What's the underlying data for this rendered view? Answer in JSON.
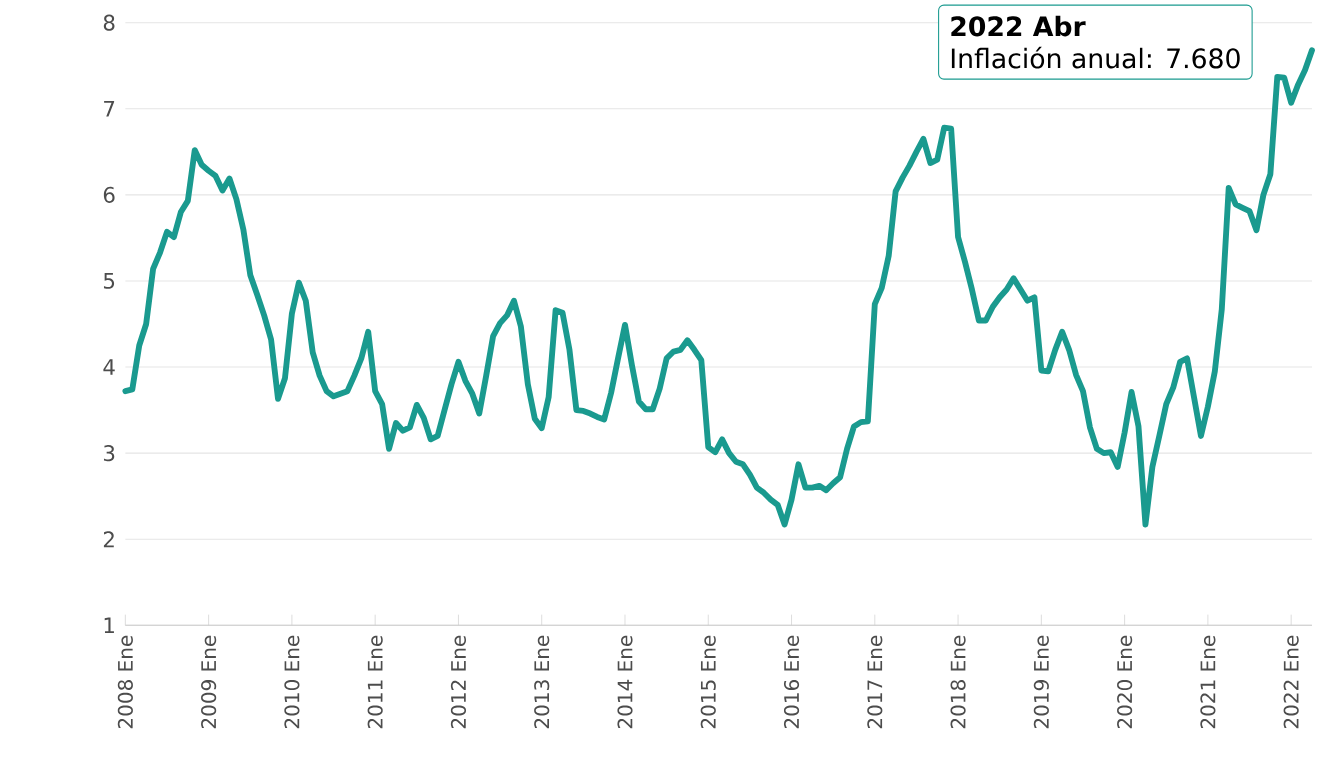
{
  "chart_data": {
    "type": "line",
    "x": [
      "2008-01",
      "2008-02",
      "2008-03",
      "2008-04",
      "2008-05",
      "2008-06",
      "2008-07",
      "2008-08",
      "2008-09",
      "2008-10",
      "2008-11",
      "2008-12",
      "2009-01",
      "2009-02",
      "2009-03",
      "2009-04",
      "2009-05",
      "2009-06",
      "2009-07",
      "2009-08",
      "2009-09",
      "2009-10",
      "2009-11",
      "2009-12",
      "2010-01",
      "2010-02",
      "2010-03",
      "2010-04",
      "2010-05",
      "2010-06",
      "2010-07",
      "2010-08",
      "2010-09",
      "2010-10",
      "2010-11",
      "2010-12",
      "2011-01",
      "2011-02",
      "2011-03",
      "2011-04",
      "2011-05",
      "2011-06",
      "2011-07",
      "2011-08",
      "2011-09",
      "2011-10",
      "2011-11",
      "2011-12",
      "2012-01",
      "2012-02",
      "2012-03",
      "2012-04",
      "2012-05",
      "2012-06",
      "2012-07",
      "2012-08",
      "2012-09",
      "2012-10",
      "2012-11",
      "2012-12",
      "2013-01",
      "2013-02",
      "2013-03",
      "2013-04",
      "2013-05",
      "2013-06",
      "2013-07",
      "2013-08",
      "2013-09",
      "2013-10",
      "2013-11",
      "2013-12",
      "2014-01",
      "2014-02",
      "2014-03",
      "2014-04",
      "2014-05",
      "2014-06",
      "2014-07",
      "2014-08",
      "2014-09",
      "2014-10",
      "2014-11",
      "2014-12",
      "2015-01",
      "2015-02",
      "2015-03",
      "2015-04",
      "2015-05",
      "2015-06",
      "2015-07",
      "2015-08",
      "2015-09",
      "2015-10",
      "2015-11",
      "2015-12",
      "2016-01",
      "2016-02",
      "2016-03",
      "2016-04",
      "2016-05",
      "2016-06",
      "2016-07",
      "2016-08",
      "2016-09",
      "2016-10",
      "2016-11",
      "2016-12",
      "2017-01",
      "2017-02",
      "2017-03",
      "2017-04",
      "2017-05",
      "2017-06",
      "2017-07",
      "2017-08",
      "2017-09",
      "2017-10",
      "2017-11",
      "2017-12",
      "2018-01",
      "2018-02",
      "2018-03",
      "2018-04",
      "2018-05",
      "2018-06",
      "2018-07",
      "2018-08",
      "2018-09",
      "2018-10",
      "2018-11",
      "2018-12",
      "2019-01",
      "2019-02",
      "2019-03",
      "2019-04",
      "2019-05",
      "2019-06",
      "2019-07",
      "2019-08",
      "2019-09",
      "2019-10",
      "2019-11",
      "2019-12",
      "2020-01",
      "2020-02",
      "2020-03",
      "2020-04",
      "2020-05",
      "2020-06",
      "2020-07",
      "2020-08",
      "2020-09",
      "2020-10",
      "2020-11",
      "2020-12",
      "2021-01",
      "2021-02",
      "2021-03",
      "2021-04",
      "2021-05",
      "2021-06",
      "2021-07",
      "2021-08",
      "2021-09",
      "2021-10",
      "2021-11",
      "2021-12",
      "2022-01",
      "2022-02",
      "2022-03",
      "2022-04"
    ],
    "series": [
      {
        "color": "#1a9a8f",
        "values": [
          3.72,
          3.74,
          4.25,
          4.5,
          5.14,
          5.33,
          5.57,
          5.51,
          5.8,
          5.93,
          6.52,
          6.35,
          6.28,
          6.22,
          6.05,
          6.19,
          5.95,
          5.6,
          5.07,
          4.84,
          4.6,
          4.32,
          3.63,
          3.87,
          4.62,
          4.98,
          4.77,
          4.17,
          3.9,
          3.72,
          3.66,
          3.69,
          3.72,
          3.9,
          4.1,
          4.41,
          3.72,
          3.57,
          3.05,
          3.35,
          3.26,
          3.3,
          3.56,
          3.41,
          3.16,
          3.2,
          3.5,
          3.8,
          4.06,
          3.84,
          3.69,
          3.46,
          3.9,
          4.36,
          4.51,
          4.6,
          4.77,
          4.47,
          3.8,
          3.4,
          3.29,
          3.65,
          4.66,
          4.63,
          4.2,
          3.5,
          3.49,
          3.46,
          3.42,
          3.39,
          3.7,
          4.1,
          4.49,
          4.02,
          3.6,
          3.51,
          3.51,
          3.75,
          4.1,
          4.18,
          4.2,
          4.31,
          4.2,
          4.08,
          3.07,
          3.01,
          3.16,
          3.0,
          2.9,
          2.87,
          2.75,
          2.6,
          2.54,
          2.46,
          2.4,
          2.17,
          2.46,
          2.87,
          2.6,
          2.6,
          2.62,
          2.57,
          2.65,
          2.72,
          3.05,
          3.31,
          3.36,
          3.37,
          4.73,
          4.92,
          5.29,
          6.04,
          6.2,
          6.34,
          6.5,
          6.65,
          6.37,
          6.41,
          6.78,
          6.77,
          5.51,
          5.22,
          4.9,
          4.54,
          4.54,
          4.7,
          4.81,
          4.9,
          5.03,
          4.9,
          4.77,
          4.81,
          3.96,
          3.95,
          4.2,
          4.41,
          4.2,
          3.91,
          3.72,
          3.3,
          3.05,
          3.0,
          3.01,
          2.84,
          3.24,
          3.71,
          3.31,
          2.17,
          2.84,
          3.2,
          3.57,
          3.76,
          4.06,
          4.1,
          3.65,
          3.2,
          3.54,
          3.95,
          4.67,
          6.08,
          5.89,
          5.85,
          5.81,
          5.59,
          6.0,
          6.24,
          7.37,
          7.36,
          7.07,
          7.28,
          7.45,
          7.68
        ]
      }
    ],
    "xlim": [
      "2008-01",
      "2022-04"
    ],
    "xticks": [
      {
        "value": "2008-01",
        "label": "2008 Ene"
      },
      {
        "value": "2009-01",
        "label": "2009 Ene"
      },
      {
        "value": "2010-01",
        "label": "2010 Ene"
      },
      {
        "value": "2011-01",
        "label": "2011 Ene"
      },
      {
        "value": "2012-01",
        "label": "2012 Ene"
      },
      {
        "value": "2013-01",
        "label": "2013 Ene"
      },
      {
        "value": "2014-01",
        "label": "2014 Ene"
      },
      {
        "value": "2015-01",
        "label": "2015 Ene"
      },
      {
        "value": "2016-01",
        "label": "2016 Ene"
      },
      {
        "value": "2017-01",
        "label": "2017 Ene"
      },
      {
        "value": "2018-01",
        "label": "2018 Ene"
      },
      {
        "value": "2019-01",
        "label": "2019 Ene"
      },
      {
        "value": "2020-01",
        "label": "2020 Ene"
      },
      {
        "value": "2021-01",
        "label": "2021 Ene"
      },
      {
        "value": "2022-01",
        "label": "2022 Ene"
      }
    ],
    "ylim": [
      1,
      8
    ],
    "yticks": [
      1,
      2,
      3,
      4,
      5,
      6,
      7,
      8
    ],
    "grid": "y",
    "annotations": [
      "2022 Abr",
      "Inflación anual: 7.680"
    ]
  }
}
